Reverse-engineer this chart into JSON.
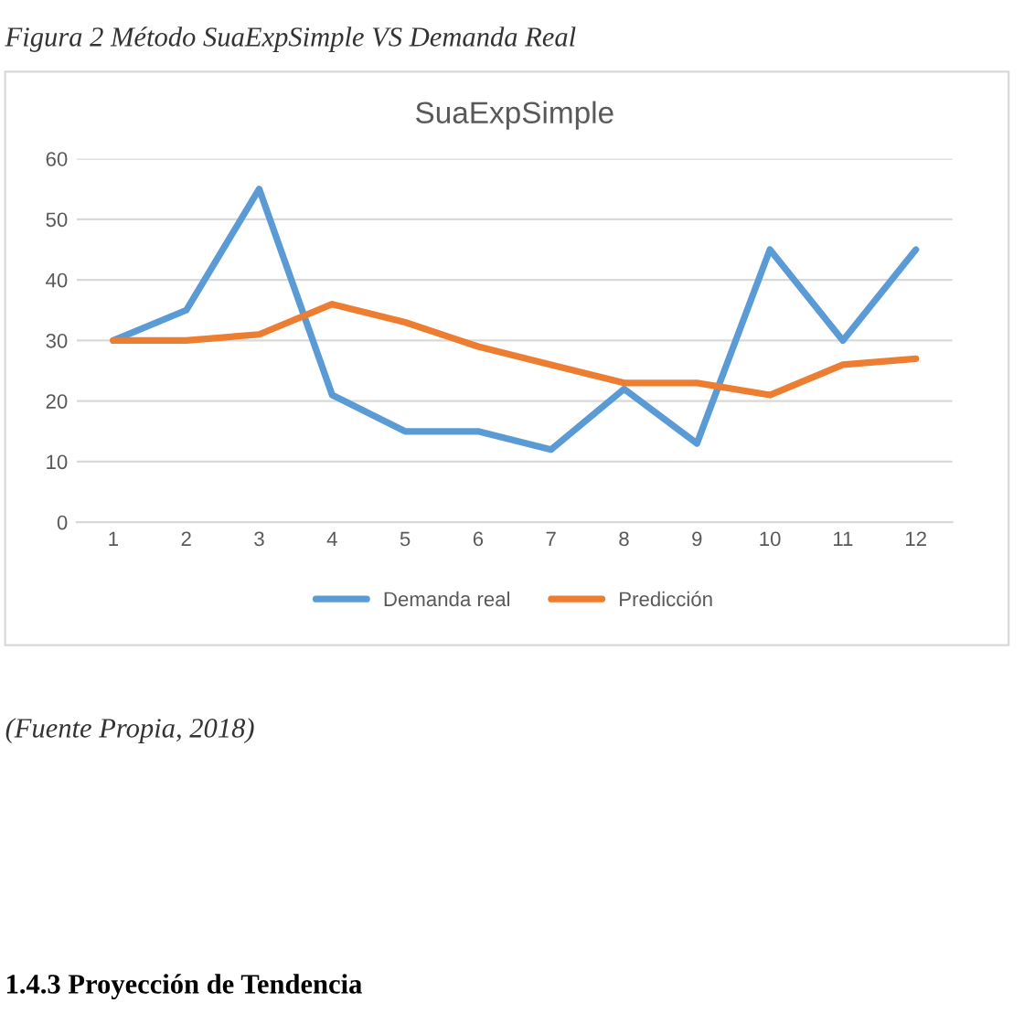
{
  "chart_data": {
    "type": "line",
    "title": "SuaExpSimple",
    "categories": [
      "1",
      "2",
      "3",
      "4",
      "5",
      "6",
      "7",
      "8",
      "9",
      "10",
      "11",
      "12"
    ],
    "series": [
      {
        "name": "Demanda real",
        "color": "#5b9bd5",
        "values": [
          30,
          35,
          55,
          21,
          15,
          15,
          12,
          22,
          13,
          45,
          30,
          45
        ]
      },
      {
        "name": "Predicción",
        "color": "#ed7d31",
        "values": [
          30,
          30,
          31,
          36,
          33,
          29,
          26,
          23,
          23,
          21,
          26,
          27
        ]
      }
    ],
    "ylim": [
      0,
      60
    ],
    "yticks": [
      0,
      10,
      20,
      30,
      40,
      50,
      60
    ],
    "grid": "y",
    "legend": "bottom",
    "marker": "none",
    "line_style": "solid",
    "annotations": [
      "Figura 2 Método SuaExpSimple VS Demanda Real",
      "(Fuente Propia, 2018)",
      "1.4.3 Proyección de Tendencia"
    ]
  }
}
